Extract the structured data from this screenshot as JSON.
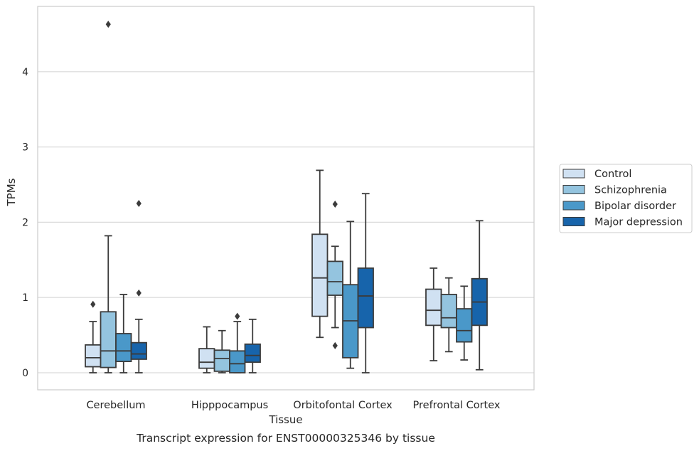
{
  "chart_data": {
    "type": "box",
    "title": "",
    "caption": "Transcript expression for ENST00000325346 by tissue",
    "xlabel": "Tissue",
    "ylabel": "TPMs",
    "ylim": [
      -0.22,
      4.87
    ],
    "yticks": [
      0,
      1,
      2,
      3,
      4
    ],
    "grid": "horizontal",
    "legend_position": "right",
    "categories": [
      "Cerebellum",
      "Hipppocampus",
      "Orbitofontal Cortex",
      "Prefrontal Cortex"
    ],
    "series": [
      {
        "name": "Control",
        "color": "#d0e1f2",
        "boxes": [
          {
            "whisker_low": 0.0,
            "q1": 0.08,
            "median": 0.2,
            "q3": 0.37,
            "whisker_high": 0.68,
            "outliers": [
              0.91
            ]
          },
          {
            "whisker_low": 0.0,
            "q1": 0.06,
            "median": 0.14,
            "q3": 0.32,
            "whisker_high": 0.61,
            "outliers": []
          },
          {
            "whisker_low": 0.47,
            "q1": 0.75,
            "median": 1.26,
            "q3": 1.84,
            "whisker_high": 2.69,
            "outliers": []
          },
          {
            "whisker_low": 0.16,
            "q1": 0.63,
            "median": 0.83,
            "q3": 1.11,
            "whisker_high": 1.39,
            "outliers": []
          }
        ]
      },
      {
        "name": "Schizophrenia",
        "color": "#94c4df",
        "boxes": [
          {
            "whisker_low": 0.0,
            "q1": 0.07,
            "median": 0.29,
            "q3": 0.81,
            "whisker_high": 1.82,
            "outliers": [
              4.63
            ]
          },
          {
            "whisker_low": 0.0,
            "q1": 0.02,
            "median": 0.19,
            "q3": 0.3,
            "whisker_high": 0.56,
            "outliers": []
          },
          {
            "whisker_low": 0.6,
            "q1": 1.03,
            "median": 1.21,
            "q3": 1.48,
            "whisker_high": 1.68,
            "outliers": [
              2.24,
              0.36
            ]
          },
          {
            "whisker_low": 0.28,
            "q1": 0.6,
            "median": 0.73,
            "q3": 1.04,
            "whisker_high": 1.26,
            "outliers": []
          }
        ]
      },
      {
        "name": "Bipolar disorder",
        "color": "#4a98c9",
        "boxes": [
          {
            "whisker_low": 0.0,
            "q1": 0.15,
            "median": 0.29,
            "q3": 0.52,
            "whisker_high": 1.04,
            "outliers": []
          },
          {
            "whisker_low": 0.0,
            "q1": 0.0,
            "median": 0.12,
            "q3": 0.29,
            "whisker_high": 0.68,
            "outliers": [
              0.75
            ]
          },
          {
            "whisker_low": 0.06,
            "q1": 0.2,
            "median": 0.69,
            "q3": 1.17,
            "whisker_high": 2.01,
            "outliers": []
          },
          {
            "whisker_low": 0.17,
            "q1": 0.41,
            "median": 0.56,
            "q3": 0.85,
            "whisker_high": 1.15,
            "outliers": []
          }
        ]
      },
      {
        "name": "Major depression",
        "color": "#1764ab",
        "boxes": [
          {
            "whisker_low": 0.0,
            "q1": 0.18,
            "median": 0.25,
            "q3": 0.4,
            "whisker_high": 0.71,
            "outliers": [
              2.25,
              1.06
            ]
          },
          {
            "whisker_low": 0.0,
            "q1": 0.14,
            "median": 0.23,
            "q3": 0.38,
            "whisker_high": 0.71,
            "outliers": []
          },
          {
            "whisker_low": 0.0,
            "q1": 0.6,
            "median": 1.02,
            "q3": 1.39,
            "whisker_high": 2.38,
            "outliers": []
          },
          {
            "whisker_low": 0.04,
            "q1": 0.63,
            "median": 0.94,
            "q3": 1.25,
            "whisker_high": 2.02,
            "outliers": []
          }
        ]
      }
    ]
  }
}
